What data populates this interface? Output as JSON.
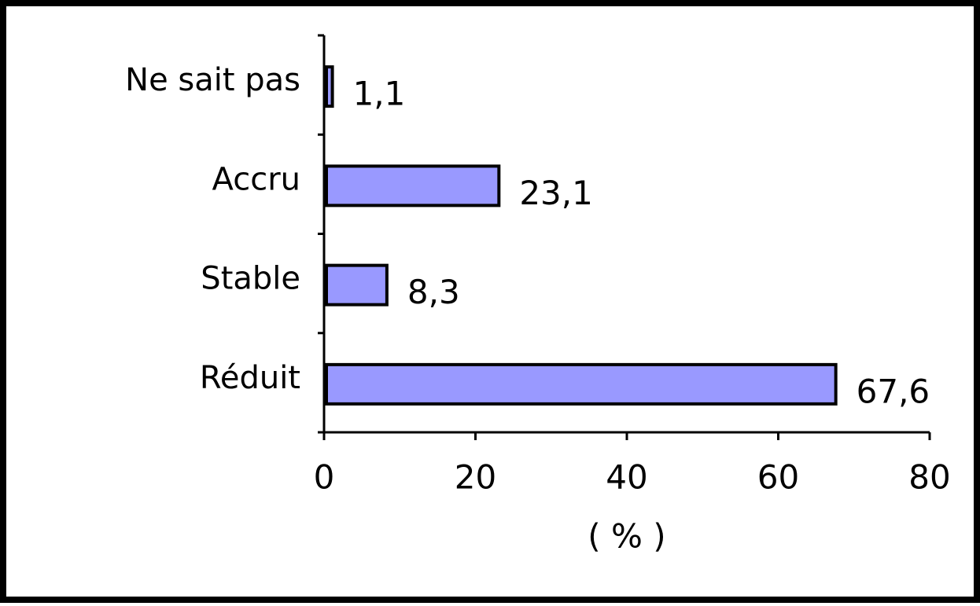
{
  "chart_data": {
    "type": "bar",
    "orientation": "horizontal",
    "categories": [
      "Ne sait pas",
      "Accru",
      "Stable",
      "Réduit"
    ],
    "values": [
      1.1,
      23.1,
      8.3,
      67.6
    ],
    "value_labels": [
      "1,1",
      "23,1",
      "8,3",
      "67,6"
    ],
    "color": "#9999ff",
    "xlim": [
      0,
      80
    ],
    "xticks": [
      0,
      20,
      40,
      60,
      80
    ],
    "x_label": "( % )"
  }
}
